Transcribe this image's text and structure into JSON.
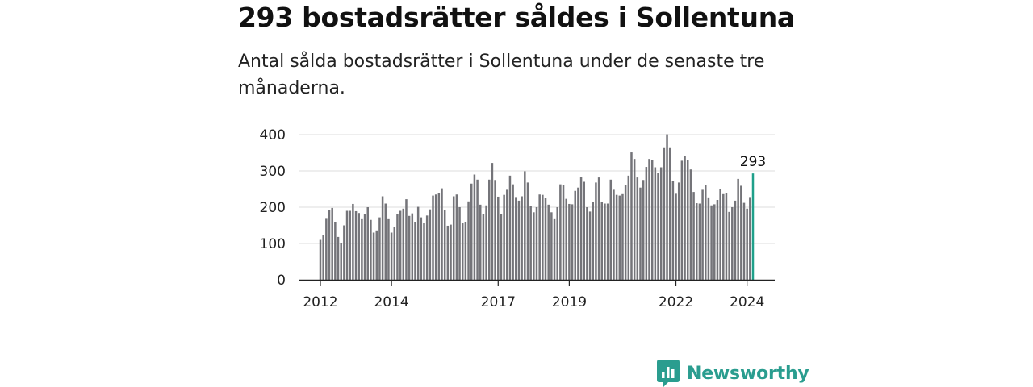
{
  "brand": {
    "name": "Newsworthy",
    "color": "#2a9d8f",
    "icon": "bar-chart-speech-bubble-icon"
  },
  "colors": {
    "bar": "#747479",
    "highlight": "#1fa08a",
    "grid": "#dddddd",
    "axis": "#222222"
  },
  "chart_data": {
    "type": "bar",
    "title": "293 bostadsrätter såldes i Sollentuna",
    "subtitle": "Antal sålda bostadsrätter i Sollentuna under de senaste tre månaderna.",
    "xlabel": "",
    "ylabel": "",
    "ylim": [
      0,
      400
    ],
    "yticks": [
      0,
      100,
      200,
      300,
      400
    ],
    "grid": true,
    "x_start": "2012-01",
    "xticks": [
      {
        "label": "2012",
        "x": "2012-01"
      },
      {
        "label": "2014",
        "x": "2014-01"
      },
      {
        "label": "2017",
        "x": "2017-01"
      },
      {
        "label": "2019",
        "x": "2019-01"
      },
      {
        "label": "2022",
        "x": "2022-01"
      },
      {
        "label": "2024",
        "x": "2024-01"
      }
    ],
    "highlight": {
      "x": "2024-03",
      "value": 293,
      "label": "293"
    },
    "series": [
      {
        "values": [
          110,
          123,
          168,
          193,
          198,
          160,
          118,
          100,
          150,
          190,
          190,
          209,
          189,
          184,
          167,
          181,
          200,
          165,
          130,
          136,
          172,
          230,
          210,
          167,
          130,
          146,
          182,
          190,
          196,
          222,
          176,
          183,
          160,
          201,
          172,
          156,
          177,
          194,
          232,
          235,
          238,
          252,
          193,
          149,
          152,
          230,
          235,
          200,
          157,
          160,
          216,
          265,
          290,
          276,
          207,
          181,
          205,
          276,
          322,
          275,
          229,
          180,
          234,
          248,
          287,
          263,
          228,
          218,
          230,
          299,
          268,
          204,
          186,
          200,
          235,
          234,
          225,
          207,
          186,
          167,
          200,
          263,
          262,
          223,
          209,
          208,
          245,
          254,
          284,
          270,
          200,
          188,
          214,
          268,
          282,
          215,
          210,
          210,
          276,
          248,
          234,
          232,
          236,
          262,
          287,
          351,
          333,
          282,
          254,
          275,
          311,
          333,
          330,
          310,
          294,
          310,
          365,
          401,
          365,
          273,
          237,
          268,
          328,
          340,
          331,
          304,
          242,
          211,
          210,
          248,
          261,
          227,
          205,
          208,
          220,
          250,
          236,
          240,
          187,
          200,
          218,
          278,
          259,
          212,
          196,
          228,
          293
        ]
      }
    ]
  }
}
